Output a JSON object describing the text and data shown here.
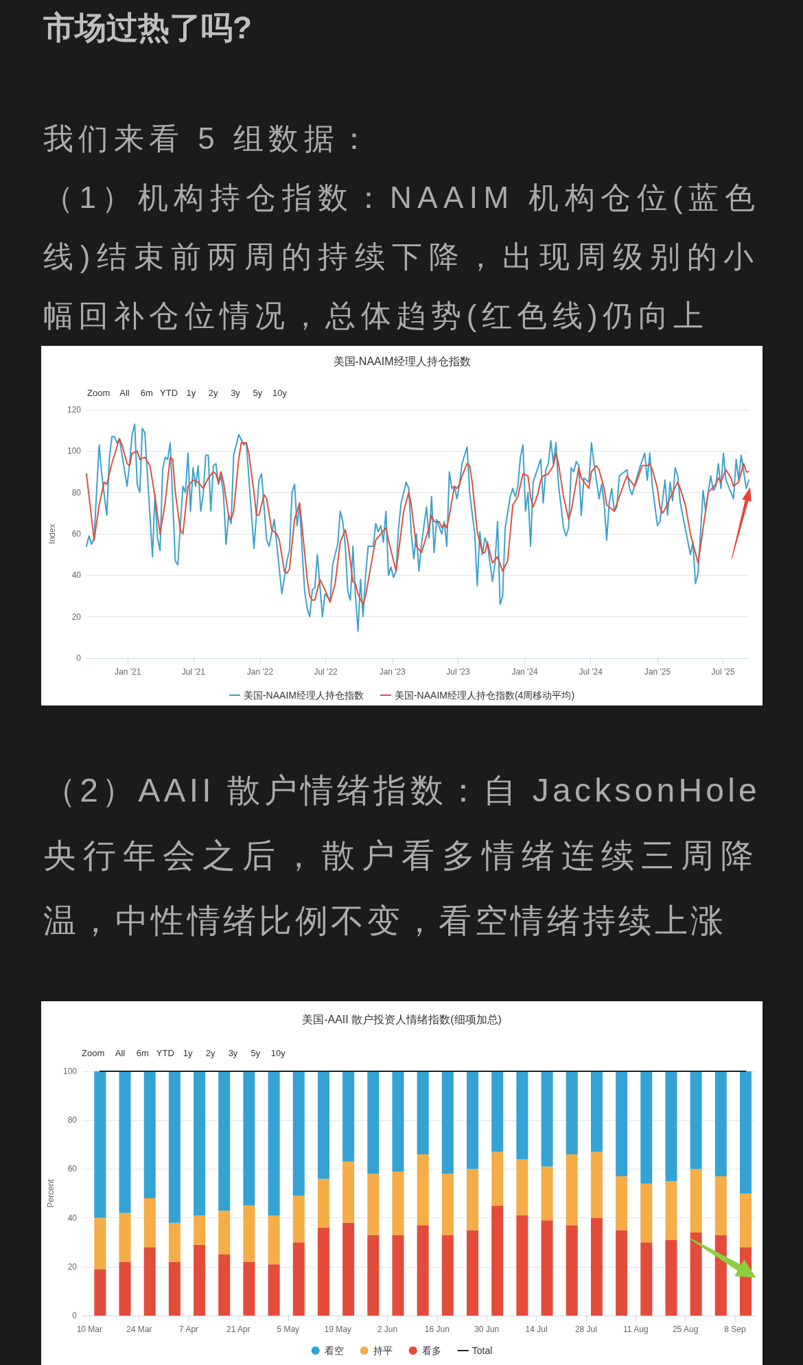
{
  "chart_data": [
    {
      "type": "other",
      "title": "市场过热了吗?",
      "annotations": [
        "我们来看 5 组数据：",
        "（1）机构持仓指数：NAAIM 机构仓位(蓝色",
        "线)结束前两周的持续下降，出现周级别的小",
        "幅回补仓位情况，总体趋势(红色线)仍向上"
      ]
    },
    {
      "type": "line",
      "title": "美国-NAAIM经理人持仓指数",
      "ylabel": "Index",
      "annotations": [
        "Zoom",
        "All",
        "6m",
        "YTD",
        "1y",
        "2y",
        "3y",
        "5y",
        "10y"
      ],
      "xlim": [
        "2020-09-09",
        "2025-09-10"
      ],
      "xticks": [
        {
          "value": "2021-01-01",
          "label": "Jan '21"
        },
        {
          "value": "2021-07-01",
          "label": "Jul '21"
        },
        {
          "value": "2022-01-01",
          "label": "Jan '22"
        },
        {
          "value": "2022-07-01",
          "label": "Jul '22"
        },
        {
          "value": "2023-01-01",
          "label": "Jan '23"
        },
        {
          "value": "2023-07-01",
          "label": "Jul '23"
        },
        {
          "value": "2024-01-01",
          "label": "Jan '24"
        },
        {
          "value": "2024-07-01",
          "label": "Jul '24"
        },
        {
          "value": "2025-01-01",
          "label": "Jan '25"
        },
        {
          "value": "2025-07-01",
          "label": "Jul '25"
        }
      ],
      "ylim": [
        0,
        120
      ],
      "yticks": [
        0,
        20,
        40,
        60,
        80,
        100,
        120
      ],
      "grid": "y",
      "legend": "bottom",
      "marker": "none",
      "series": [
        {
          "name": "美国-NAAIM经理人持仓指数",
          "color": "#3ea1cb",
          "x": [
            "2020-09-09",
            "2020-09-16",
            "2020-09-23",
            "2020-09-30",
            "2020-10-14",
            "2020-10-21",
            "2020-11-04",
            "2020-11-11",
            "2020-11-18",
            "2020-11-25",
            "2020-12-02",
            "2020-12-09",
            "2020-12-30",
            "2021-01-06",
            "2021-01-13",
            "2021-01-20",
            "2021-01-27",
            "2021-02-03",
            "2021-02-10",
            "2021-02-17",
            "2021-03-10",
            "2021-03-17",
            "2021-03-24",
            "2021-03-31",
            "2021-04-07",
            "2021-04-14",
            "2021-04-21",
            "2021-04-28",
            "2021-05-12",
            "2021-05-19",
            "2021-06-02",
            "2021-06-09",
            "2021-06-16",
            "2021-06-23",
            "2021-06-30",
            "2021-07-07",
            "2021-07-14",
            "2021-07-21",
            "2021-07-28",
            "2021-08-04",
            "2021-08-11",
            "2021-08-18",
            "2021-08-25",
            "2021-09-01",
            "2021-09-08",
            "2021-09-15",
            "2021-09-22",
            "2021-09-29",
            "2021-10-06",
            "2021-10-13",
            "2021-10-20",
            "2021-11-03",
            "2021-11-17",
            "2021-11-24",
            "2021-12-15",
            "2021-12-29",
            "2022-01-05",
            "2022-01-19",
            "2022-01-26",
            "2022-02-09",
            "2022-03-02",
            "2022-03-16",
            "2022-03-23",
            "2022-03-30",
            "2022-04-06",
            "2022-04-13",
            "2022-04-20",
            "2022-04-27",
            "2022-05-04",
            "2022-05-11",
            "2022-05-18",
            "2022-05-25",
            "2022-06-01",
            "2022-06-08",
            "2022-06-22",
            "2022-06-29",
            "2022-07-13",
            "2022-07-20",
            "2022-08-03",
            "2022-08-10",
            "2022-08-17",
            "2022-08-24",
            "2022-08-31",
            "2022-09-07",
            "2022-09-14",
            "2022-09-21",
            "2022-09-28",
            "2022-10-05",
            "2022-10-12",
            "2022-10-19",
            "2022-10-26",
            "2022-11-09",
            "2022-11-16",
            "2022-11-23",
            "2022-11-30",
            "2022-12-07",
            "2022-12-14",
            "2022-12-21",
            "2022-12-28",
            "2023-01-04",
            "2023-01-11",
            "2023-01-18",
            "2023-01-25",
            "2023-02-08",
            "2023-02-15",
            "2023-02-22",
            "2023-03-01",
            "2023-03-08",
            "2023-03-15",
            "2023-03-22",
            "2023-04-05",
            "2023-04-12",
            "2023-04-19",
            "2023-04-26",
            "2023-05-03",
            "2023-05-17",
            "2023-05-24",
            "2023-05-31",
            "2023-06-07",
            "2023-06-14",
            "2023-06-21",
            "2023-06-28",
            "2023-07-05",
            "2023-07-12",
            "2023-07-26",
            "2023-08-02",
            "2023-08-16",
            "2023-08-23",
            "2023-08-30",
            "2023-09-06",
            "2023-09-13",
            "2023-09-20",
            "2023-10-04",
            "2023-10-11",
            "2023-10-18",
            "2023-10-25",
            "2023-11-01",
            "2023-11-08",
            "2023-11-22",
            "2023-11-29",
            "2023-12-06",
            "2023-12-13",
            "2023-12-20",
            "2023-12-27",
            "2024-01-03",
            "2024-01-10",
            "2024-01-17",
            "2024-01-24",
            "2024-02-14",
            "2024-02-21",
            "2024-02-28",
            "2024-03-06",
            "2024-03-13",
            "2024-03-20",
            "2024-03-27",
            "2024-04-03",
            "2024-04-17",
            "2024-04-24",
            "2024-05-01",
            "2024-05-08",
            "2024-05-15",
            "2024-05-22",
            "2024-05-29",
            "2024-06-05",
            "2024-06-12",
            "2024-06-26",
            "2024-07-03",
            "2024-07-10",
            "2024-07-24",
            "2024-07-31",
            "2024-08-07",
            "2024-08-14",
            "2024-08-21",
            "2024-08-28",
            "2024-09-04",
            "2024-09-11",
            "2024-09-18",
            "2024-10-09",
            "2024-10-16",
            "2024-10-23",
            "2024-11-13",
            "2024-11-27",
            "2024-12-04",
            "2024-12-11",
            "2024-12-18",
            "2025-01-01",
            "2025-01-08",
            "2025-01-22",
            "2025-01-29",
            "2025-02-05",
            "2025-02-12",
            "2025-02-19",
            "2025-02-26",
            "2025-03-05",
            "2025-04-02",
            "2025-04-09",
            "2025-04-16",
            "2025-04-23",
            "2025-05-07",
            "2025-05-14",
            "2025-05-21",
            "2025-05-28",
            "2025-06-04",
            "2025-06-11",
            "2025-06-18",
            "2025-06-25",
            "2025-07-02",
            "2025-07-09",
            "2025-07-30",
            "2025-08-06",
            "2025-08-13",
            "2025-08-20",
            "2025-09-03",
            "2025-09-10"
          ],
          "values": [
            54,
            59,
            55,
            58,
            103,
            89,
            69,
            96,
            107,
            107,
            104,
            106,
            83,
            94,
            108,
            113,
            84,
            80,
            111,
            109,
            49,
            79,
            58,
            52,
            91,
            97,
            96,
            104,
            47,
            45,
            83,
            80,
            99,
            71,
            92,
            83,
            93,
            71,
            79,
            98,
            98,
            71,
            93,
            94,
            84,
            88,
            79,
            55,
            69,
            65,
            98,
            108,
            103,
            104,
            53,
            86,
            89,
            57,
            54,
            67,
            31,
            47,
            52,
            80,
            84,
            64,
            74,
            52,
            32,
            24,
            20,
            33,
            34,
            50,
            20,
            31,
            28,
            45,
            55,
            71,
            66,
            54,
            32,
            28,
            54,
            30,
            13,
            38,
            20,
            40,
            54,
            54,
            65,
            61,
            64,
            56,
            71,
            40,
            44,
            39,
            42,
            63,
            75,
            85,
            82,
            60,
            48,
            60,
            42,
            55,
            73,
            58,
            78,
            51,
            67,
            60,
            66,
            54,
            90,
            82,
            83,
            77,
            84,
            94,
            102,
            80,
            60,
            35,
            61,
            50,
            58,
            55,
            37,
            46,
            66,
            26,
            30,
            63,
            78,
            82,
            78,
            83,
            97,
            103,
            71,
            80,
            54,
            85,
            96,
            75,
            91,
            94,
            105,
            94,
            104,
            84,
            63,
            59,
            63,
            92,
            90,
            95,
            93,
            69,
            87,
            85,
            104,
            94,
            77,
            84,
            75,
            57,
            75,
            82,
            71,
            73,
            88,
            91,
            82,
            79,
            92,
            99,
            86,
            99,
            83,
            64,
            66,
            86,
            69,
            85,
            76,
            92,
            88,
            75,
            50,
            56,
            36,
            41,
            81,
            71,
            80,
            88,
            81,
            83,
            94,
            82,
            99,
            86,
            77,
            96,
            86,
            98,
            82,
            86
          ]
        },
        {
          "name": "美国-NAAIM经理人持仓指数(4周移动平均)",
          "color": "#de4f3f",
          "x": [
            "2020-09-09",
            "2020-09-30",
            "2020-10-14",
            "2020-10-28",
            "2020-11-04",
            "2020-11-18",
            "2020-12-09",
            "2020-12-16",
            "2020-12-30",
            "2021-01-06",
            "2021-01-13",
            "2021-01-27",
            "2021-02-03",
            "2021-02-17",
            "2021-03-03",
            "2021-03-17",
            "2021-03-31",
            "2021-04-14",
            "2021-04-28",
            "2021-05-05",
            "2021-05-12",
            "2021-05-26",
            "2021-06-02",
            "2021-06-16",
            "2021-06-30",
            "2021-07-14",
            "2021-07-28",
            "2021-08-11",
            "2021-08-25",
            "2021-09-01",
            "2021-09-08",
            "2021-09-15",
            "2021-09-22",
            "2021-10-06",
            "2021-10-13",
            "2021-10-20",
            "2021-11-03",
            "2021-11-10",
            "2021-11-24",
            "2021-12-01",
            "2021-12-15",
            "2021-12-22",
            "2021-12-29",
            "2022-01-12",
            "2022-01-19",
            "2022-02-02",
            "2022-02-16",
            "2022-02-23",
            "2022-03-09",
            "2022-03-16",
            "2022-03-23",
            "2022-04-06",
            "2022-04-20",
            "2022-04-27",
            "2022-05-11",
            "2022-05-18",
            "2022-05-25",
            "2022-06-01",
            "2022-06-08",
            "2022-06-15",
            "2022-06-29",
            "2022-07-13",
            "2022-07-27",
            "2022-08-10",
            "2022-08-24",
            "2022-08-31",
            "2022-09-14",
            "2022-09-21",
            "2022-09-28",
            "2022-10-12",
            "2022-10-19",
            "2022-11-09",
            "2022-11-16",
            "2022-12-14",
            "2022-12-21",
            "2023-01-11",
            "2023-01-25",
            "2023-02-01",
            "2023-02-15",
            "2023-02-22",
            "2023-03-08",
            "2023-03-22",
            "2023-04-12",
            "2023-04-19",
            "2023-04-26",
            "2023-05-10",
            "2023-05-17",
            "2023-05-24",
            "2023-05-31",
            "2023-06-07",
            "2023-06-21",
            "2023-06-28",
            "2023-07-05",
            "2023-07-12",
            "2023-07-26",
            "2023-08-02",
            "2023-08-09",
            "2023-08-23",
            "2023-09-06",
            "2023-09-13",
            "2023-09-20",
            "2023-09-27",
            "2023-10-04",
            "2023-10-18",
            "2023-11-01",
            "2023-11-15",
            "2023-11-29",
            "2023-12-13",
            "2023-12-27",
            "2024-01-10",
            "2024-01-17",
            "2024-01-24",
            "2024-01-31",
            "2024-02-07",
            "2024-02-14",
            "2024-02-21",
            "2024-03-06",
            "2024-03-20",
            "2024-03-27",
            "2024-04-03",
            "2024-04-17",
            "2024-05-01",
            "2024-05-08",
            "2024-05-22",
            "2024-05-29",
            "2024-06-05",
            "2024-06-26",
            "2024-07-03",
            "2024-07-17",
            "2024-07-24",
            "2024-08-07",
            "2024-08-14",
            "2024-09-04",
            "2024-09-18",
            "2024-10-02",
            "2024-10-09",
            "2024-10-30",
            "2024-11-06",
            "2024-11-20",
            "2024-12-04",
            "2024-12-11",
            "2024-12-18",
            "2025-01-01",
            "2025-01-08",
            "2025-01-15",
            "2025-01-22",
            "2025-02-12",
            "2025-02-26",
            "2025-03-05",
            "2025-03-19",
            "2025-04-02",
            "2025-04-23",
            "2025-04-30",
            "2025-05-21",
            "2025-06-11",
            "2025-06-18",
            "2025-06-25",
            "2025-07-09",
            "2025-07-23",
            "2025-07-30",
            "2025-08-13",
            "2025-08-27",
            "2025-09-03",
            "2025-09-10"
          ],
          "values": [
            89,
            57,
            74,
            85,
            84,
            94,
            106,
            103,
            94,
            93,
            99,
            100,
            96,
            97,
            93,
            78,
            60,
            75,
            97,
            96,
            80,
            62,
            60,
            83,
            86,
            85,
            82,
            87,
            90,
            89,
            85,
            90,
            85,
            69,
            67,
            71,
            96,
            104,
            104,
            99,
            80,
            69,
            69,
            79,
            77,
            62,
            60,
            57,
            42,
            41,
            43,
            67,
            75,
            63,
            38,
            30,
            28,
            28,
            33,
            38,
            33,
            27,
            36,
            56,
            62,
            56,
            37,
            36,
            31,
            26,
            30,
            51,
            57,
            63,
            57,
            42,
            61,
            71,
            80,
            74,
            54,
            51,
            63,
            69,
            66,
            66,
            63,
            65,
            63,
            69,
            83,
            82,
            84,
            88,
            94,
            93,
            85,
            61,
            51,
            51,
            56,
            51,
            46,
            49,
            42,
            47,
            74,
            78,
            89,
            88,
            78,
            73,
            76,
            80,
            86,
            88,
            89,
            93,
            99,
            94,
            78,
            67,
            71,
            85,
            92,
            87,
            82,
            90,
            93,
            91,
            82,
            74,
            71,
            78,
            85,
            88,
            83,
            86,
            93,
            93,
            94,
            91,
            82,
            73,
            70,
            72,
            80,
            85,
            82,
            74,
            60,
            46,
            54,
            80,
            84,
            87,
            85,
            91,
            87,
            83,
            85,
            94,
            90,
            90
          ]
        }
      ]
    },
    {
      "type": "other",
      "annotations": [
        "（2）AAII 散户情绪指数：自 JacksonHole",
        "央行年会之后，散户看多情绪连续三周降",
        "温，中性情绪比例不变，看空情绪持续上涨"
      ]
    },
    {
      "type": "bar",
      "title": "美国-AAII 散户投资人情绪指数(细项加总)",
      "ylabel": "Percent",
      "annotations": [
        "Zoom",
        "All",
        "6m",
        "YTD",
        "1y",
        "2y",
        "3y",
        "5y",
        "10y"
      ],
      "x": [
        "2025-03-13",
        "2025-03-20",
        "2025-03-27",
        "2025-04-03",
        "2025-04-10",
        "2025-04-17",
        "2025-04-24",
        "2025-05-01",
        "2025-05-08",
        "2025-05-15",
        "2025-05-22",
        "2025-05-29",
        "2025-06-05",
        "2025-06-12",
        "2025-06-19",
        "2025-06-26",
        "2025-07-03",
        "2025-07-10",
        "2025-07-17",
        "2025-07-24",
        "2025-07-31",
        "2025-08-07",
        "2025-08-14",
        "2025-08-21",
        "2025-08-28",
        "2025-09-04",
        "2025-09-11"
      ],
      "xlim": [
        "2025-03-08",
        "2025-09-14"
      ],
      "xticks": [
        {
          "value": "2025-03-10",
          "label": "10 Mar"
        },
        {
          "value": "2025-03-24",
          "label": "24 Mar"
        },
        {
          "value": "2025-04-07",
          "label": "7 Apr"
        },
        {
          "value": "2025-04-21",
          "label": "21 Apr"
        },
        {
          "value": "2025-05-05",
          "label": "5 May"
        },
        {
          "value": "2025-05-19",
          "label": "19 May"
        },
        {
          "value": "2025-06-02",
          "label": "2 Jun"
        },
        {
          "value": "2025-06-16",
          "label": "16 Jun"
        },
        {
          "value": "2025-06-30",
          "label": "30 Jun"
        },
        {
          "value": "2025-07-14",
          "label": "14 Jul"
        },
        {
          "value": "2025-07-28",
          "label": "28 Jul"
        },
        {
          "value": "2025-08-11",
          "label": "11 Aug"
        },
        {
          "value": "2025-08-25",
          "label": "25 Aug"
        },
        {
          "value": "2025-09-08",
          "label": "8 Sep"
        }
      ],
      "ylim": [
        0,
        100
      ],
      "yticks": [
        0,
        20,
        40,
        60,
        80,
        100
      ],
      "stacked": true,
      "grid": "y",
      "legend": "bottom",
      "marker": "none",
      "series": [
        {
          "name": "看多",
          "color": "#e34c3a",
          "values": [
            19,
            22,
            28,
            22,
            29,
            25,
            22,
            21,
            30,
            36,
            38,
            33,
            33,
            37,
            33,
            35,
            45,
            41,
            39,
            37,
            40,
            35,
            30,
            31,
            34,
            33,
            28
          ]
        },
        {
          "name": "持平",
          "color": "#f5ad47",
          "values": [
            21,
            20,
            20,
            16,
            12,
            18,
            23,
            20,
            19,
            20,
            25,
            25,
            26,
            29,
            25,
            25,
            22,
            23,
            22,
            29,
            27,
            22,
            24,
            24,
            26,
            24,
            22
          ]
        },
        {
          "name": "看空",
          "color": "#34a3d3",
          "values": [
            60,
            58,
            52,
            62,
            59,
            57,
            55,
            59,
            51,
            44,
            37,
            42,
            41,
            34,
            42,
            40,
            33,
            36,
            39,
            34,
            33,
            43,
            46,
            45,
            40,
            43,
            50
          ]
        },
        {
          "name": "Total",
          "type": "line",
          "color": "#222222",
          "values": [
            100,
            100,
            100,
            100,
            100,
            100,
            100,
            100,
            100,
            100,
            100,
            100,
            100,
            100,
            100,
            100,
            100,
            100,
            100,
            100,
            100,
            100,
            100,
            100,
            100,
            100,
            100
          ]
        }
      ]
    }
  ]
}
